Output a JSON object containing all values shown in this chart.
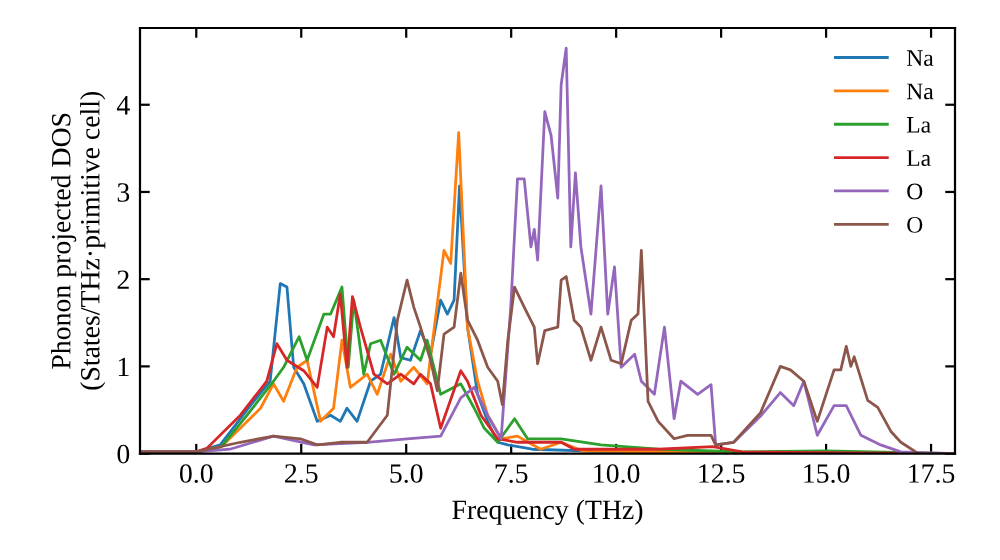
{
  "chart_data": {
    "type": "line",
    "xlabel": "Frequency (THz)",
    "ylabel": "Phonon projected DOS\n(States/THz·primitive cell)",
    "xlim": [
      -1.34,
      18.07
    ],
    "ylim": [
      0,
      4.88
    ],
    "xticks": [
      {
        "value": 0,
        "label": "0.0"
      },
      {
        "value": 2.5,
        "label": "2.5"
      },
      {
        "value": 5,
        "label": "5.0"
      },
      {
        "value": 7.5,
        "label": "7.5"
      },
      {
        "value": 10,
        "label": "10.0"
      },
      {
        "value": 12.5,
        "label": "12.5"
      },
      {
        "value": 15,
        "label": "15.0"
      },
      {
        "value": 17.5,
        "label": "17.5"
      }
    ],
    "yticks": [
      0,
      1,
      2,
      3,
      4
    ],
    "grid": false,
    "legend": "top right",
    "marker": "none",
    "line_style": "solid",
    "series": [
      {
        "name": "Na",
        "color": "#1f77b4",
        "x": [
          -1.34,
          0.0,
          0.57,
          1.37,
          1.76,
          2.0,
          2.16,
          2.32,
          2.56,
          2.88,
          3.2,
          3.43,
          3.59,
          3.83,
          4.15,
          4.39,
          4.71,
          4.87,
          5.1,
          5.34,
          5.58,
          5.82,
          5.98,
          6.14,
          6.27,
          6.46,
          6.7,
          6.94,
          7.18,
          7.42,
          8.0,
          10.0,
          12.0,
          18.07
        ],
        "values": [
          0.02,
          0.02,
          0.1,
          0.6,
          0.83,
          1.95,
          1.91,
          0.99,
          0.8,
          0.37,
          0.44,
          0.37,
          0.52,
          0.37,
          0.83,
          0.91,
          1.56,
          1.1,
          1.07,
          1.41,
          1.14,
          1.76,
          1.6,
          1.76,
          3.07,
          1.45,
          0.68,
          0.37,
          0.13,
          0.1,
          0.05,
          0.02,
          0.01,
          0.0
        ]
      },
      {
        "name": "Na",
        "color": "#ff7f0e",
        "x": [
          -1.34,
          0.0,
          0.6,
          1.53,
          1.84,
          2.08,
          2.4,
          2.64,
          2.96,
          3.27,
          3.47,
          3.67,
          4.07,
          4.31,
          4.63,
          4.87,
          5.18,
          5.5,
          5.9,
          6.06,
          6.25,
          6.46,
          6.7,
          6.94,
          7.26,
          7.65,
          8.2,
          8.69,
          9.2,
          12.0,
          18.07
        ],
        "values": [
          0.02,
          0.02,
          0.08,
          0.52,
          0.8,
          0.6,
          0.99,
          1.07,
          0.37,
          0.52,
          1.3,
          0.76,
          0.91,
          0.68,
          1.14,
          0.83,
          0.99,
          0.8,
          2.33,
          2.18,
          3.68,
          1.45,
          0.83,
          0.44,
          0.17,
          0.2,
          0.05,
          0.13,
          0.03,
          0.01,
          0.0
        ]
      },
      {
        "name": "La",
        "color": "#2ca02c",
        "x": [
          -1.34,
          0.0,
          0.6,
          1.21,
          1.84,
          2.08,
          2.45,
          2.64,
          3.04,
          3.2,
          3.47,
          3.62,
          3.75,
          3.99,
          4.15,
          4.39,
          4.71,
          5.02,
          5.34,
          5.5,
          5.82,
          6.3,
          6.62,
          6.86,
          7.18,
          7.58,
          7.89,
          8.69,
          9.64,
          11.0,
          13.0,
          15.0,
          18.07
        ],
        "values": [
          0.02,
          0.02,
          0.08,
          0.44,
          0.83,
          0.99,
          1.34,
          1.07,
          1.6,
          1.6,
          1.91,
          0.99,
          1.76,
          0.91,
          1.26,
          1.3,
          0.91,
          1.22,
          1.07,
          1.3,
          0.68,
          0.8,
          0.52,
          0.29,
          0.13,
          0.4,
          0.17,
          0.17,
          0.1,
          0.05,
          0.02,
          0.03,
          0.0
        ]
      },
      {
        "name": "La",
        "color": "#d62728",
        "x": [
          -1.34,
          0.0,
          0.25,
          1.05,
          1.68,
          1.92,
          2.16,
          2.56,
          2.88,
          3.12,
          3.27,
          3.43,
          3.59,
          3.72,
          3.91,
          4.23,
          4.55,
          4.87,
          5.18,
          5.34,
          5.58,
          5.82,
          6.3,
          6.46,
          6.78,
          7.18,
          7.65,
          8.69,
          9.0,
          11.0,
          12.3,
          13.0,
          18.07
        ],
        "values": [
          0.02,
          0.02,
          0.06,
          0.44,
          0.83,
          1.26,
          1.07,
          0.95,
          0.76,
          1.45,
          1.34,
          1.83,
          0.99,
          1.8,
          1.45,
          0.91,
          0.8,
          0.91,
          0.8,
          0.91,
          0.8,
          0.29,
          0.95,
          0.83,
          0.44,
          0.17,
          0.13,
          0.13,
          0.05,
          0.05,
          0.08,
          0.02,
          0.0
        ]
      },
      {
        "name": "O",
        "color": "#9467bd",
        "x": [
          -1.34,
          0.0,
          0.8,
          1.84,
          2.8,
          4.07,
          5.02,
          5.82,
          6.3,
          6.62,
          6.94,
          7.26,
          7.49,
          7.65,
          7.81,
          7.97,
          8.05,
          8.13,
          8.3,
          8.45,
          8.61,
          8.69,
          8.81,
          8.92,
          9.03,
          9.16,
          9.4,
          9.64,
          9.8,
          9.96,
          10.12,
          10.44,
          10.6,
          10.91,
          11.15,
          11.38,
          11.54,
          11.94,
          12.26,
          12.37,
          12.8,
          13.44,
          13.91,
          14.23,
          14.47,
          14.79,
          15.19,
          15.48,
          15.83,
          16.3,
          16.78,
          18.07
        ],
        "values": [
          0.02,
          0.02,
          0.05,
          0.2,
          0.1,
          0.13,
          0.17,
          0.2,
          0.64,
          0.76,
          0.44,
          0.17,
          1.68,
          3.15,
          3.15,
          2.37,
          2.57,
          2.22,
          3.92,
          3.65,
          2.93,
          4.23,
          4.65,
          2.37,
          3.22,
          2.37,
          1.6,
          3.07,
          1.6,
          2.14,
          0.99,
          1.14,
          0.83,
          0.68,
          1.45,
          0.4,
          0.83,
          0.68,
          0.79,
          0.1,
          0.13,
          0.43,
          0.7,
          0.55,
          0.83,
          0.21,
          0.55,
          0.55,
          0.21,
          0.1,
          0.02,
          0.0
        ]
      },
      {
        "name": "O",
        "color": "#8c564b",
        "x": [
          -1.34,
          0.0,
          1.05,
          1.84,
          2.48,
          2.88,
          3.43,
          4.07,
          4.55,
          4.79,
          5.02,
          5.18,
          5.34,
          5.58,
          5.74,
          5.9,
          6.14,
          6.3,
          6.46,
          6.7,
          6.94,
          7.18,
          7.29,
          7.42,
          7.58,
          7.81,
          8.05,
          8.13,
          8.3,
          8.61,
          8.69,
          8.81,
          9.0,
          9.16,
          9.4,
          9.64,
          9.88,
          10.12,
          10.36,
          10.52,
          10.6,
          10.76,
          11.0,
          11.38,
          11.7,
          12.26,
          12.37,
          12.8,
          13.44,
          13.91,
          14.15,
          14.47,
          14.79,
          15.19,
          15.35,
          15.48,
          15.59,
          15.67,
          15.99,
          16.23,
          16.55,
          16.78,
          17.2,
          18.07
        ],
        "values": [
          0.02,
          0.02,
          0.13,
          0.2,
          0.17,
          0.1,
          0.13,
          0.13,
          0.44,
          1.53,
          1.99,
          1.68,
          1.45,
          1.07,
          0.72,
          1.37,
          1.45,
          2.07,
          1.53,
          1.3,
          0.99,
          0.83,
          0.56,
          1.3,
          1.91,
          1.68,
          1.45,
          1.03,
          1.41,
          1.45,
          1.99,
          2.03,
          1.53,
          1.45,
          1.07,
          1.45,
          1.07,
          1.03,
          1.53,
          1.6,
          2.33,
          0.6,
          0.37,
          0.17,
          0.21,
          0.21,
          0.1,
          0.13,
          0.47,
          1.0,
          0.96,
          0.83,
          0.37,
          0.96,
          0.96,
          1.23,
          1.0,
          1.11,
          0.61,
          0.53,
          0.25,
          0.13,
          0.0,
          0.0
        ]
      }
    ]
  }
}
